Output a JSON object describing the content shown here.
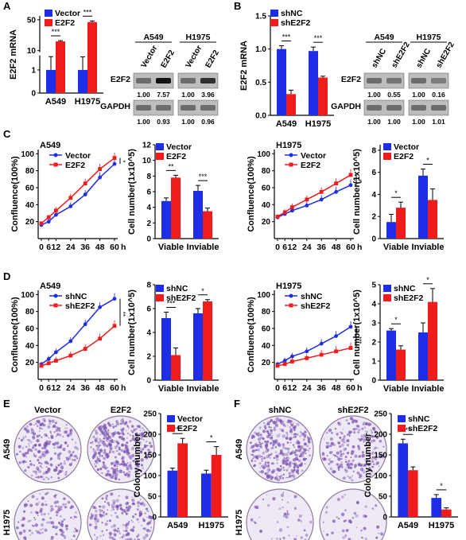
{
  "panel_letters": [
    "A",
    "B",
    "C",
    "D",
    "E",
    "F"
  ],
  "colors": {
    "blue": "#1e2de6",
    "red": "#ee1c1c",
    "plate": "#7a55b0",
    "plate_bg": "#efe9f5"
  },
  "legends": {
    "vector_e2f2": [
      "Vector",
      "E2F2"
    ],
    "shnc_she2f2": [
      "shNC",
      "shE2F2"
    ]
  },
  "hours": "h",
  "blots": {
    "A": {
      "lines": [
        "A549",
        "H1975"
      ],
      "lanes": [
        "Vector",
        "E2F2",
        "Vector",
        "E2F2"
      ],
      "rows": [
        {
          "label": "E2F2",
          "q": [
            "1.00",
            "7.57",
            "1.00",
            "3.96"
          ]
        },
        {
          "label": "GAPDH",
          "q": [
            "1.00",
            "0.93",
            "1.00",
            "0.96"
          ]
        }
      ]
    },
    "B": {
      "lines": [
        "A549",
        "H1975"
      ],
      "lanes": [
        "shNC",
        "shE2F2",
        "shNC",
        "shE2F2"
      ],
      "rows": [
        {
          "label": "E2F2",
          "q": [
            "1.00",
            "0.55",
            "1.00",
            "0.16"
          ]
        },
        {
          "label": "GAPDH",
          "q": [
            "1.00",
            "1.00",
            "1.00",
            "1.01"
          ]
        }
      ]
    }
  },
  "plates": {
    "E": {
      "cols": [
        "Vector",
        "E2F2"
      ],
      "rows": [
        "A549",
        "H1975"
      ],
      "density": [
        0.55,
        0.85,
        0.3,
        0.45
      ]
    },
    "F": {
      "cols": [
        "shNC",
        "shE2F2"
      ],
      "rows": [
        "A549",
        "H1975"
      ],
      "density": [
        0.85,
        0.5,
        0.06,
        0.03
      ]
    }
  },
  "chart_data": [
    {
      "id": "A-mrna",
      "type": "bar",
      "categories": [
        "A549",
        "H1975"
      ],
      "series": [
        {
          "name": "Vector",
          "values": [
            1.0,
            1.0
          ]
        },
        {
          "name": "E2F2",
          "values": [
            22,
            47
          ]
        }
      ],
      "errors": [
        [
          1.2,
          1.0
        ],
        [
          1.0,
          1.5
        ]
      ],
      "ylabel": "E2F2 mRNA",
      "yticks": [
        "0",
        "1",
        "10",
        "50"
      ],
      "sig": [
        "***",
        "***"
      ]
    },
    {
      "id": "B-mrna",
      "type": "bar",
      "categories": [
        "A549",
        "H1975"
      ],
      "series": [
        {
          "name": "shNC",
          "values": [
            1.0,
            0.97
          ]
        },
        {
          "name": "shE2F2",
          "values": [
            0.32,
            0.57
          ]
        }
      ],
      "errors": [
        [
          0.05,
          0.06
        ],
        [
          0.06,
          0.02
        ]
      ],
      "ylabel": "E2F2 mRNA",
      "yticks": [
        "0.0",
        "0.5",
        "1.0",
        "1.5"
      ],
      "ylim": [
        0,
        1.5
      ],
      "sig": [
        "***",
        "***"
      ]
    },
    {
      "id": "C-A549-growth",
      "type": "line",
      "title": "A549",
      "x": [
        0,
        6,
        12,
        24,
        36,
        48,
        60
      ],
      "xticks": [
        "0",
        "6",
        "12",
        "24",
        "36",
        "48",
        "60"
      ],
      "series": [
        {
          "name": "Vector",
          "values": [
            16,
            20,
            28,
            38,
            52,
            72,
            88
          ]
        },
        {
          "name": "E2F2",
          "values": [
            18,
            25,
            33,
            48,
            65,
            82,
            95
          ]
        }
      ],
      "ylabel": "Confluence(100%)",
      "yticks": [
        "20",
        "40",
        "60",
        "80",
        "100"
      ],
      "ylim": [
        0,
        105
      ],
      "sig": "*"
    },
    {
      "id": "C-A549-count",
      "type": "bar",
      "categories": [
        "Viable",
        "Inviable"
      ],
      "series": [
        {
          "name": "Vector",
          "values": [
            4.8,
            6.1
          ]
        },
        {
          "name": "E2F2",
          "values": [
            7.8,
            3.5
          ]
        }
      ],
      "errors": [
        [
          0.4,
          0.3
        ],
        [
          0.7,
          0.4
        ]
      ],
      "ylabel": "Cell number(1x10^5)",
      "yticks": [
        "0",
        "2",
        "4",
        "6",
        "8",
        "10",
        "12"
      ],
      "ylim": [
        0,
        12
      ],
      "sig": [
        "**",
        "***"
      ]
    },
    {
      "id": "C-H1975-growth",
      "type": "line",
      "title": "H1975",
      "x": [
        0,
        6,
        12,
        24,
        36,
        48,
        60
      ],
      "xticks": [
        "0",
        "6",
        "12",
        "24",
        "36",
        "48",
        "60"
      ],
      "series": [
        {
          "name": "Vector",
          "values": [
            25,
            29,
            33,
            39,
            46,
            55,
            63
          ]
        },
        {
          "name": "E2F2",
          "values": [
            26,
            31,
            37,
            46,
            55,
            65,
            75
          ]
        }
      ],
      "ylabel": "Confluence(100%)",
      "yticks": [
        "20",
        "40",
        "60",
        "80",
        "100"
      ],
      "ylim": [
        0,
        105
      ],
      "sig": "*"
    },
    {
      "id": "C-H1975-count",
      "type": "bar",
      "categories": [
        "Viable",
        "Inviable"
      ],
      "series": [
        {
          "name": "Vector",
          "values": [
            1.5,
            5.7
          ]
        },
        {
          "name": "E2F2",
          "values": [
            2.8,
            3.5
          ]
        }
      ],
      "errors": [
        [
          0.7,
          0.5
        ],
        [
          0.6,
          1.0
        ]
      ],
      "ylabel": "Cell number(1x10^5)",
      "yticks": [
        "0",
        "2",
        "4",
        "6",
        "8"
      ],
      "ylim": [
        0,
        8.5
      ],
      "sig": [
        "*",
        "*"
      ]
    },
    {
      "id": "D-A549-growth",
      "type": "line",
      "title": "A549",
      "x": [
        0,
        6,
        12,
        24,
        36,
        48,
        60
      ],
      "xticks": [
        "0",
        "6",
        "12",
        "24",
        "36",
        "48",
        "60"
      ],
      "series": [
        {
          "name": "shNC",
          "values": [
            18,
            24,
            32,
            45,
            65,
            85,
            95
          ]
        },
        {
          "name": "shE2F2",
          "values": [
            16,
            19,
            22,
            28,
            36,
            48,
            63
          ]
        }
      ],
      "ylabel": "Confluence(100%)",
      "yticks": [
        "20",
        "40",
        "60",
        "80",
        "100"
      ],
      "ylim": [
        0,
        105
      ],
      "sig": "**"
    },
    {
      "id": "D-A549-count",
      "type": "bar",
      "categories": [
        "Viable",
        "Inviable"
      ],
      "series": [
        {
          "name": "shNC",
          "values": [
            5.2,
            5.6
          ]
        },
        {
          "name": "shE2F2",
          "values": [
            2.1,
            6.6
          ]
        }
      ],
      "errors": [
        [
          0.5,
          0.6
        ],
        [
          0.4,
          0.15
        ]
      ],
      "ylabel": "Cell number(1x10^5)",
      "yticks": [
        "0",
        "2",
        "4",
        "6",
        "8"
      ],
      "ylim": [
        0,
        8
      ],
      "sig": [
        "***",
        "*"
      ]
    },
    {
      "id": "D-H1975-growth",
      "type": "line",
      "title": "H1975",
      "x": [
        0,
        6,
        12,
        24,
        36,
        48,
        60
      ],
      "xticks": [
        "0",
        "6",
        "12",
        "24",
        "36",
        "48",
        "60"
      ],
      "series": [
        {
          "name": "shNC",
          "values": [
            18,
            22,
            27,
            33,
            42,
            51,
            62
          ]
        },
        {
          "name": "shE2F2",
          "values": [
            16,
            18,
            21,
            25,
            29,
            33,
            37
          ]
        }
      ],
      "ylabel": "Confluence(100%)",
      "yticks": [
        "20",
        "40",
        "60",
        "80",
        "100"
      ],
      "ylim": [
        0,
        105
      ],
      "sig": "***"
    },
    {
      "id": "D-H1975-count",
      "type": "bar",
      "categories": [
        "Viable",
        "Inviable"
      ],
      "series": [
        {
          "name": "shNC",
          "values": [
            2.6,
            2.5
          ]
        },
        {
          "name": "shE2F2",
          "values": [
            1.6,
            4.1
          ]
        }
      ],
      "errors": [
        [
          0.1,
          0.2
        ],
        [
          0.5,
          0.7
        ]
      ],
      "ylabel": "Cell number(1x10^5)",
      "yticks": [
        "0",
        "1",
        "2",
        "3",
        "4",
        "5"
      ],
      "ylim": [
        0,
        5
      ],
      "sig": [
        "*",
        "*"
      ]
    },
    {
      "id": "E-colony",
      "type": "bar",
      "categories": [
        "A549",
        "H1975"
      ],
      "series": [
        {
          "name": "Vector",
          "values": [
            112,
            105
          ]
        },
        {
          "name": "E2F2",
          "values": [
            178,
            150
          ]
        }
      ],
      "errors": [
        [
          6,
          12
        ],
        [
          8,
          20
        ]
      ],
      "ylabel": "Colony number",
      "yticks": [
        "0",
        "50",
        "100",
        "150",
        "200",
        "250"
      ],
      "ylim": [
        0,
        250
      ],
      "sig": [
        "***",
        "*"
      ]
    },
    {
      "id": "F-colony",
      "type": "bar",
      "categories": [
        "A549",
        "H1975"
      ],
      "series": [
        {
          "name": "shNC",
          "values": [
            178,
            46
          ]
        },
        {
          "name": "shE2F2",
          "values": [
            113,
            18
          ]
        }
      ],
      "errors": [
        [
          10,
          8
        ],
        [
          8,
          4
        ]
      ],
      "ylabel": "Colony number",
      "yticks": [
        "0",
        "50",
        "100",
        "150",
        "200",
        "250"
      ],
      "ylim": [
        0,
        250
      ],
      "sig": [
        "**",
        "*"
      ]
    }
  ]
}
